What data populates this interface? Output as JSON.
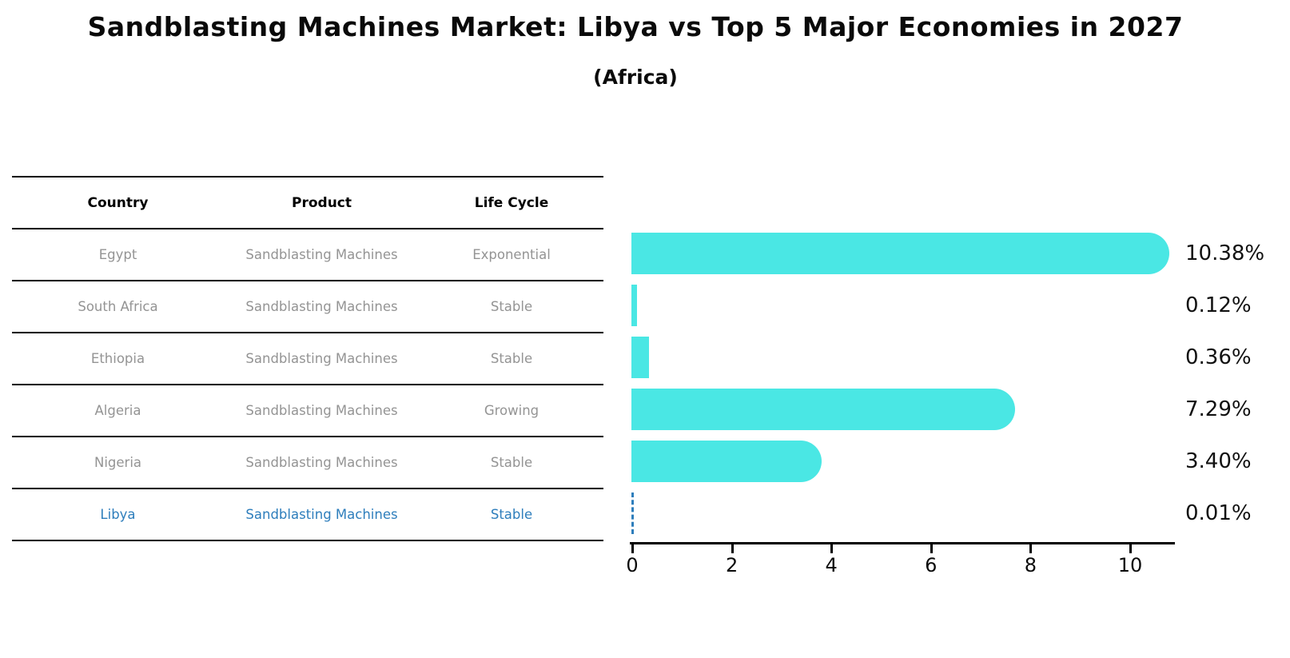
{
  "header": {
    "title": "Sandblasting Machines Market: Libya vs Top 5 Major Economies in 2027",
    "subtitle": "(Africa)"
  },
  "table": {
    "columns": [
      "Country",
      "Product",
      "Life Cycle"
    ],
    "rows": [
      {
        "country": "Egypt",
        "product": "Sandblasting Machines",
        "life_cycle": "Exponential",
        "highlight": false
      },
      {
        "country": "South Africa",
        "product": "Sandblasting Machines",
        "life_cycle": "Stable",
        "highlight": false
      },
      {
        "country": "Ethiopia",
        "product": "Sandblasting Machines",
        "life_cycle": "Stable",
        "highlight": false
      },
      {
        "country": "Algeria",
        "product": "Sandblasting Machines",
        "life_cycle": "Growing",
        "highlight": false
      },
      {
        "country": "Nigeria",
        "product": "Sandblasting Machines",
        "life_cycle": "Stable",
        "highlight": false
      },
      {
        "country": "Libya",
        "product": "Sandblasting Machines",
        "life_cycle": "Stable",
        "highlight": true
      }
    ]
  },
  "chart_data": {
    "type": "bar",
    "orientation": "horizontal",
    "title": "Sandblasting Machines Market: Libya vs Top 5 Major Economies in 2027",
    "subtitle": "(Africa)",
    "categories": [
      "Egypt",
      "South Africa",
      "Ethiopia",
      "Algeria",
      "Nigeria",
      "Libya"
    ],
    "values": [
      10.38,
      0.12,
      0.36,
      7.29,
      3.4,
      0.01
    ],
    "value_labels": [
      "10.38%",
      "0.12%",
      "0.36%",
      "7.29%",
      "3.40%",
      "0.01%"
    ],
    "xlabel": "",
    "ylabel": "",
    "xlim": [
      0,
      11
    ],
    "xticks": [
      0,
      2,
      4,
      6,
      8,
      10
    ],
    "grid": false,
    "legend": false,
    "bar_color": "#4AE7E4",
    "highlight_color": "#2E7EBC",
    "highlight_index": 5,
    "highlight_style": "dashed-outline"
  },
  "colors": {
    "bar": "#4AE7E4",
    "highlight_blue": "#2E7EBC",
    "table_text_gray": "#949494",
    "text_black": "#0a0a0a"
  }
}
